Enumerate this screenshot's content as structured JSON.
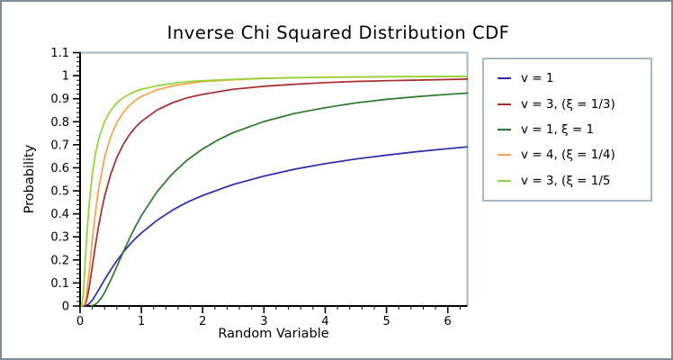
{
  "title": "Inverse Chi Squared Distribution CDF",
  "colors": {
    "background": "#ffffff",
    "outer_border": "#7f8b99",
    "frame": "#a9b6c6",
    "axis": "#000000",
    "text": "#000000"
  },
  "chart_data": {
    "type": "line",
    "title": "Inverse Chi Squared Distribution CDF",
    "xlabel": "Random Variable",
    "ylabel": "Probability",
    "xlim": [
      0,
      6.32
    ],
    "ylim": [
      0,
      1.1
    ],
    "grid": false,
    "legend_position": "right",
    "x_tick_labels": [
      "0",
      "1",
      "2",
      "3",
      "4",
      "5",
      "6"
    ],
    "x_major_ticks": [
      0,
      1,
      2,
      3,
      4,
      5,
      6
    ],
    "x_minor_step": 0.2,
    "y_tick_labels": [
      "0",
      "0.1",
      "0.2",
      "0.3",
      "0.4",
      "0.5",
      "0.6",
      "0.7",
      "0.8",
      "0.9",
      "1",
      "1.1"
    ],
    "y_major_ticks": [
      0,
      0.1,
      0.2,
      0.3,
      0.4,
      0.5,
      0.6,
      0.7,
      0.8,
      0.9,
      1,
      1.1
    ],
    "y_minor_step": 0.02,
    "series": [
      {
        "name": "v = 1",
        "color": "#2a2aad",
        "points": [
          [
            0.03,
            0
          ],
          [
            0.1,
            0.002
          ],
          [
            0.15,
            0.01
          ],
          [
            0.2,
            0.025
          ],
          [
            0.25,
            0.046
          ],
          [
            0.3,
            0.068
          ],
          [
            0.35,
            0.091
          ],
          [
            0.4,
            0.114
          ],
          [
            0.45,
            0.136
          ],
          [
            0.5,
            0.157
          ],
          [
            0.6,
            0.197
          ],
          [
            0.7,
            0.232
          ],
          [
            0.8,
            0.264
          ],
          [
            0.9,
            0.292
          ],
          [
            1,
            0.317
          ],
          [
            1.25,
            0.371
          ],
          [
            1.5,
            0.415
          ],
          [
            1.75,
            0.451
          ],
          [
            2,
            0.48
          ],
          [
            2.5,
            0.528
          ],
          [
            3,
            0.564
          ],
          [
            3.5,
            0.594
          ],
          [
            4,
            0.618
          ],
          [
            4.5,
            0.638
          ],
          [
            5,
            0.655
          ],
          [
            5.5,
            0.67
          ],
          [
            6,
            0.683
          ],
          [
            6.32,
            0.691
          ]
        ]
      },
      {
        "name": "v = 3, (ξ = 1/3)",
        "color": "#a52a2a",
        "points": [
          [
            0.07,
            0
          ],
          [
            0.08,
            0.006
          ],
          [
            0.1,
            0.019
          ],
          [
            0.12,
            0.04
          ],
          [
            0.15,
            0.083
          ],
          [
            0.2,
            0.172
          ],
          [
            0.25,
            0.262
          ],
          [
            0.3,
            0.343
          ],
          [
            0.35,
            0.414
          ],
          [
            0.4,
            0.475
          ],
          [
            0.5,
            0.573
          ],
          [
            0.6,
            0.645
          ],
          [
            0.7,
            0.699
          ],
          [
            0.8,
            0.742
          ],
          [
            0.9,
            0.775
          ],
          [
            1,
            0.801
          ],
          [
            1.25,
            0.85
          ],
          [
            1.5,
            0.882
          ],
          [
            1.75,
            0.904
          ],
          [
            2,
            0.919
          ],
          [
            2.5,
            0.941
          ],
          [
            3,
            0.954
          ],
          [
            3.5,
            0.963
          ],
          [
            4,
            0.97
          ],
          [
            4.5,
            0.975
          ],
          [
            5,
            0.978
          ],
          [
            5.5,
            0.981
          ],
          [
            6,
            0.983
          ],
          [
            6.32,
            0.985
          ]
        ]
      },
      {
        "name": "v = 1, ξ = 1",
        "color": "#287a28",
        "points": [
          [
            0.18,
            0
          ],
          [
            0.25,
            0.007
          ],
          [
            0.3,
            0.019
          ],
          [
            0.35,
            0.036
          ],
          [
            0.4,
            0.058
          ],
          [
            0.5,
            0.112
          ],
          [
            0.6,
            0.172
          ],
          [
            0.7,
            0.232
          ],
          [
            0.8,
            0.29
          ],
          [
            0.9,
            0.343
          ],
          [
            1,
            0.392
          ],
          [
            1.25,
            0.494
          ],
          [
            1.5,
            0.573
          ],
          [
            1.75,
            0.634
          ],
          [
            2,
            0.682
          ],
          [
            2.25,
            0.721
          ],
          [
            2.5,
            0.753
          ],
          [
            3,
            0.801
          ],
          [
            3.5,
            0.836
          ],
          [
            4,
            0.861
          ],
          [
            4.5,
            0.882
          ],
          [
            5,
            0.897
          ],
          [
            5.5,
            0.909
          ],
          [
            6,
            0.919
          ],
          [
            6.32,
            0.924
          ]
        ]
      },
      {
        "name": "v = 4, (ξ = 1/4)",
        "color": "#ff9f45",
        "points": [
          [
            0.04,
            0
          ],
          [
            0.075,
            0.01
          ],
          [
            0.1,
            0.04
          ],
          [
            0.15,
            0.155
          ],
          [
            0.2,
            0.287
          ],
          [
            0.25,
            0.406
          ],
          [
            0.3,
            0.504
          ],
          [
            0.4,
            0.645
          ],
          [
            0.5,
            0.736
          ],
          [
            0.6,
            0.797
          ],
          [
            0.7,
            0.839
          ],
          [
            0.8,
            0.87
          ],
          [
            0.9,
            0.892
          ],
          [
            1,
            0.91
          ],
          [
            1.25,
            0.938
          ],
          [
            1.5,
            0.955
          ],
          [
            1.75,
            0.966
          ],
          [
            2,
            0.974
          ],
          [
            2.5,
            0.982
          ],
          [
            3,
            0.988
          ],
          [
            3.5,
            0.991
          ],
          [
            4,
            0.993
          ],
          [
            4.5,
            0.994
          ],
          [
            5,
            0.995
          ],
          [
            5.5,
            0.996
          ],
          [
            6,
            0.997
          ],
          [
            6.32,
            0.997
          ]
        ]
      },
      {
        "name": "v = 3, (ξ = 1/5",
        "color": "#90d433",
        "points": [
          [
            0.02,
            0
          ],
          [
            0.05,
            0.046
          ],
          [
            0.075,
            0.15
          ],
          [
            0.1,
            0.262
          ],
          [
            0.125,
            0.362
          ],
          [
            0.15,
            0.446
          ],
          [
            0.2,
            0.573
          ],
          [
            0.25,
            0.659
          ],
          [
            0.3,
            0.721
          ],
          [
            0.4,
            0.801
          ],
          [
            0.5,
            0.85
          ],
          [
            0.6,
            0.882
          ],
          [
            0.7,
            0.904
          ],
          [
            0.8,
            0.919
          ],
          [
            0.9,
            0.931
          ],
          [
            1,
            0.941
          ],
          [
            1.25,
            0.956
          ],
          [
            1.5,
            0.966
          ],
          [
            1.75,
            0.974
          ],
          [
            2,
            0.978
          ],
          [
            2.5,
            0.984
          ],
          [
            3,
            0.989
          ],
          [
            3.5,
            0.991
          ],
          [
            4,
            0.9935
          ],
          [
            4.5,
            0.9945
          ],
          [
            5,
            0.9955
          ],
          [
            5.5,
            0.9962
          ],
          [
            6,
            0.9968
          ],
          [
            6.32,
            0.997
          ]
        ]
      }
    ]
  }
}
